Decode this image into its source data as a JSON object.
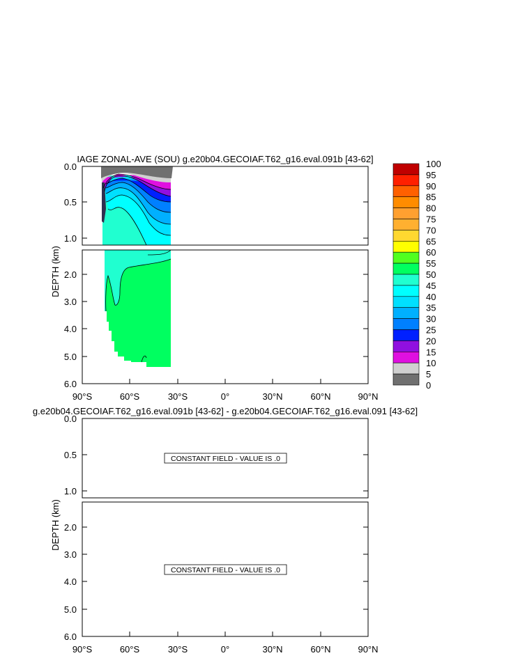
{
  "chart_data": [
    {
      "type": "contour",
      "title": "IAGE ZONAL-AVE (SOU) g.e20b04.GECOIAF.T62_g16.eval.091b [43-62]",
      "ylabel": "DEPTH (km)",
      "x_ticks": [
        "90°S",
        "60°S",
        "30°S",
        "0°",
        "30°N",
        "60°N",
        "90°N"
      ],
      "y_ticks_upper": [
        "0.0",
        "0.5",
        "1.0"
      ],
      "y_ticks_lower": [
        "2.0",
        "3.0",
        "4.0",
        "5.0",
        "6.0"
      ],
      "xlim": [
        -90,
        90
      ],
      "ylim_upper_km": [
        0,
        1.1
      ],
      "ylim_lower_km": [
        1.1,
        6.0
      ],
      "data_extent_lat": [
        -78,
        -34
      ],
      "colorbar": {
        "levels": [
          "100",
          "95",
          "90",
          "85",
          "80",
          "75",
          "70",
          "65",
          "60",
          "55",
          "50",
          "45",
          "40",
          "35",
          "30",
          "25",
          "20",
          "15",
          "10",
          "5",
          "0"
        ],
        "colors": [
          "#c00000",
          "#e00000",
          "#ff2000",
          "#ff6000",
          "#ff8c00",
          "#ffa030",
          "#ffb030",
          "#ffd830",
          "#ffff00",
          "#50ff20",
          "#00ff60",
          "#20ffd0",
          "#00ffff",
          "#00e0ff",
          "#00b0ff",
          "#0080ff",
          "#0020ff",
          "#9010e0",
          "#e010e0",
          "#d0d0d0",
          "#707070"
        ]
      }
    },
    {
      "type": "contour",
      "title": "g.e20b04.GECOIAF.T62_g16.eval.091b [43-62] - g.e20b04.GECOIAF.T62_g16.eval.091 [43-62]",
      "ylabel": "DEPTH (km)",
      "x_ticks": [
        "90°S",
        "60°S",
        "30°S",
        "0°",
        "30°N",
        "60°N",
        "90°N"
      ],
      "y_ticks_upper": [
        "0.0",
        "0.5",
        "1.0"
      ],
      "y_ticks_lower": [
        "2.0",
        "3.0",
        "4.0",
        "5.0",
        "6.0"
      ],
      "constant_label_upper": "CONSTANT FIELD - VALUE IS .0",
      "constant_label_lower": "CONSTANT FIELD - VALUE IS .0"
    }
  ]
}
